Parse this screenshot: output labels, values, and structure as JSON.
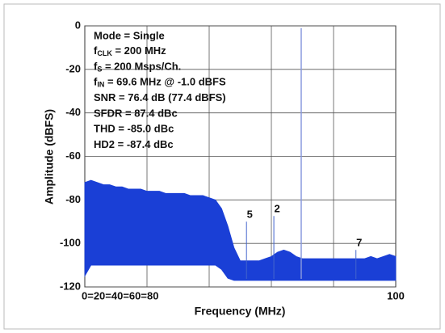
{
  "chart_data": {
    "type": "spectrum",
    "xlabel": "Frequency (MHz)",
    "ylabel": "Amplitude (dBFS)",
    "xlim": [
      0,
      100
    ],
    "ylim": [
      -120,
      0
    ],
    "xticks": [
      {
        "value": 0,
        "label": "0=20=40=60=80"
      },
      100
    ],
    "xgrid": [
      20,
      40,
      60,
      80
    ],
    "yticks": [
      0,
      -20,
      -40,
      -60,
      -80,
      -100,
      -120
    ],
    "grid": true,
    "color": "#1a3fd6",
    "x": [
      0,
      2,
      4,
      6,
      8,
      10,
      12,
      14,
      16,
      18,
      20,
      22,
      24,
      26,
      28,
      30,
      32,
      34,
      36,
      38,
      40,
      42,
      44,
      46,
      48,
      50,
      52,
      54,
      56,
      58,
      60,
      62,
      64,
      66,
      68,
      70,
      72,
      74,
      76,
      78,
      80,
      82,
      84,
      86,
      88,
      90,
      92,
      94,
      96,
      98,
      100
    ],
    "upper": [
      -72,
      -71,
      -72,
      -73,
      -73,
      -74,
      -74,
      -75,
      -75,
      -75,
      -76,
      -76,
      -76,
      -77,
      -77,
      -77,
      -77,
      -78,
      -78,
      -78,
      -79,
      -80,
      -84,
      -92,
      -102,
      -108,
      -108,
      -108,
      -108,
      -107,
      -106,
      -104,
      -103,
      -104,
      -106,
      -107,
      -107,
      -107,
      -107,
      -107,
      -107,
      -107,
      -107,
      -107,
      -107,
      -107,
      -106,
      -107,
      -106,
      -105,
      -106
    ],
    "lower": [
      -115,
      -110,
      -110,
      -110,
      -110,
      -110,
      -110,
      -110,
      -110,
      -110,
      -110,
      -110,
      -110,
      -110,
      -110,
      -110,
      -110,
      -110,
      -110,
      -110,
      -110,
      -110,
      -112,
      -116,
      -117,
      -117,
      -117,
      -117,
      -117,
      -117,
      -117,
      -117,
      -117,
      -117,
      -117,
      -117,
      -117,
      -117,
      -117,
      -117,
      -117,
      -117,
      -117,
      -117,
      -117,
      -117,
      -117,
      -117,
      -117,
      -117,
      -117
    ],
    "spurs": {
      "x": [
        52,
        60.8,
        69.6,
        87.2
      ],
      "values": [
        -90,
        -87.4,
        -1.0,
        -103
      ],
      "labels": [
        "5",
        "2",
        null,
        "7"
      ],
      "label_color": "#e0201a"
    },
    "annotations": [
      {
        "text": "Mode = Single"
      },
      {
        "base": "f",
        "sub": "CLK",
        "rest": " = 200 MHz"
      },
      {
        "base": "f",
        "sub": "S",
        "rest": " = 200 Msps/Ch."
      },
      {
        "base": "f",
        "sub": "IN",
        "rest": " = 69.6 MHz @ -1.0 dBFS"
      },
      {
        "text": "SNR = 76.4 dB (77.4 dBFS)"
      },
      {
        "text": "SFDR = 87.4 dBc"
      },
      {
        "text": "THD = -85.0 dBc"
      },
      {
        "text": "HD2 = -87.4 dBc"
      }
    ]
  }
}
